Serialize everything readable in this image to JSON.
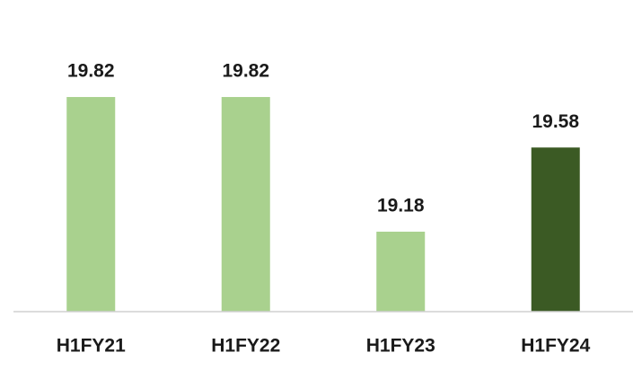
{
  "chart_data": {
    "type": "bar",
    "categories": [
      "H1FY21",
      "H1FY22",
      "H1FY23",
      "H1FY24"
    ],
    "values": [
      19.82,
      19.82,
      19.18,
      19.58
    ],
    "colors": [
      "#a9d18e",
      "#a9d18e",
      "#a9d18e",
      "#3b5a24"
    ],
    "ylim": [
      18.8,
      20.2
    ]
  }
}
